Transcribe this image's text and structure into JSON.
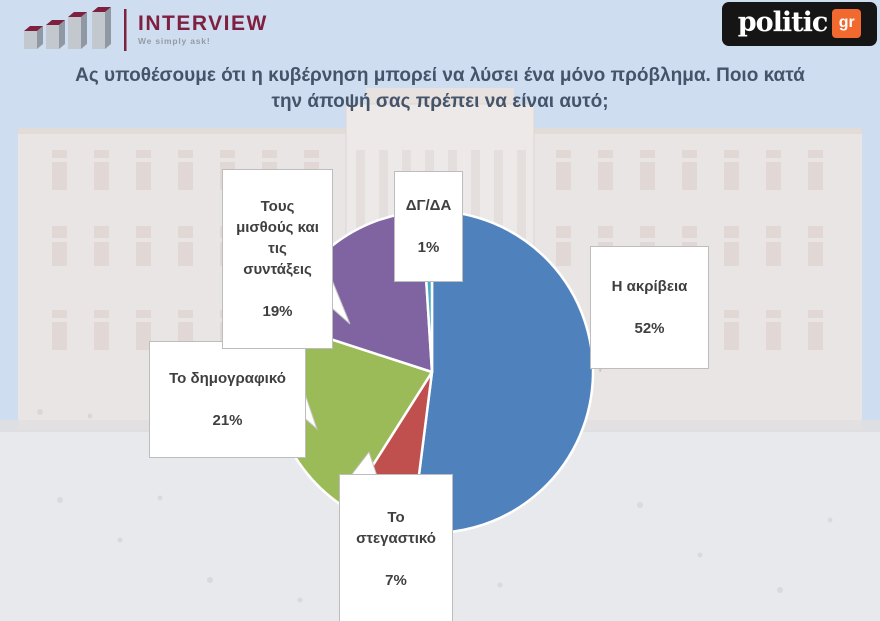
{
  "meta": {
    "background_color": "#cfddf0"
  },
  "header": {
    "interview_logo": {
      "brand": "INTERVIEW",
      "tagline": "We simply ask!",
      "brand_color": "#7E2040"
    },
    "politic_logo": {
      "brand": "politic",
      "suffix": "gr",
      "accent_color": "#F2692F"
    }
  },
  "title": {
    "text": "Ας υποθέσουμε ότι η κυβέρνηση μπορεί να λύσει ένα μόνο πρόβλημα. Ποιο κατά την άποψή σας πρέπει να είναι αυτό;",
    "color": "#44546A"
  },
  "chart_data": {
    "type": "pie",
    "title": "Ας υποθέσουμε ότι η κυβέρνηση μπορεί να λύσει ένα μόνο πρόβλημα. Ποιο κατά την άποψή σας πρέπει να είναι αυτό;",
    "start_angle_deg": 0,
    "direction": "clockwise",
    "legend_position": "callout-labels",
    "slices": [
      {
        "label": "Η ακρίβεια",
        "display_label": "Η ακρίβεια",
        "value_pct": 52,
        "pct_label": "52%",
        "color": "#4F81BD"
      },
      {
        "label": "Το στεγαστικό",
        "display_label": "Το\nστεγαστικό",
        "value_pct": 7,
        "pct_label": "7%",
        "color": "#C0504D"
      },
      {
        "label": "Το δημογραφικό",
        "display_label": "Το δημογραφικό",
        "value_pct": 21,
        "pct_label": "21%",
        "color": "#9BBB59"
      },
      {
        "label": "Τους μισθούς και τις συντάξεις",
        "display_label": "Τους\nμισθούς και\nτις\nσυντάξεις",
        "value_pct": 19,
        "pct_label": "19%",
        "color": "#8064A2"
      },
      {
        "label": "ΔΓ/ΔΑ",
        "display_label": "ΔΓ/ΔΑ",
        "value_pct": 1,
        "pct_label": "1%",
        "color": "#4BACC6"
      }
    ],
    "slice_border_color": "#FFFFFF",
    "label_text_color": "#3F3F3F",
    "callout_bg": "#FFFFFF",
    "callout_border": "#BFBFBF"
  }
}
